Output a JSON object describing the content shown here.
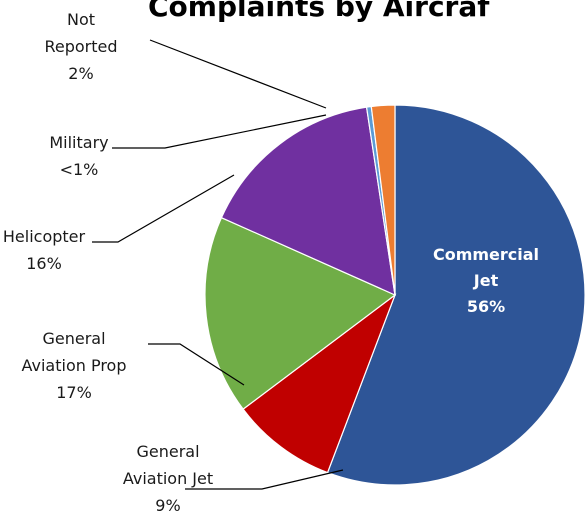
{
  "chart_data": {
    "type": "pie",
    "title": "Complaints by Aircraf",
    "slices": [
      {
        "key": "commercial-jet",
        "label_lines": [
          "Commercial",
          "Jet"
        ],
        "value": 56,
        "value_label": "56%",
        "color": "#2e5597"
      },
      {
        "key": "general-aviation-jet",
        "label_lines": [
          "General",
          "Aviation Jet"
        ],
        "value": 9,
        "value_label": "9%",
        "color": "#c00000"
      },
      {
        "key": "general-aviation-prop",
        "label_lines": [
          "General",
          "Aviation Prop"
        ],
        "value": 17,
        "value_label": "17%",
        "color": "#70ad47"
      },
      {
        "key": "helicopter",
        "label_lines": [
          "Helicopter"
        ],
        "value": 16,
        "value_label": "16%",
        "color": "#7030a0"
      },
      {
        "key": "military",
        "label_lines": [
          "Military"
        ],
        "value": 0.4,
        "value_label": "<1%",
        "color": "#5b9bd5"
      },
      {
        "key": "not-reported",
        "label_lines": [
          "Not",
          "Reported"
        ],
        "value": 2,
        "value_label": "2%",
        "color": "#ed7d31"
      }
    ]
  }
}
